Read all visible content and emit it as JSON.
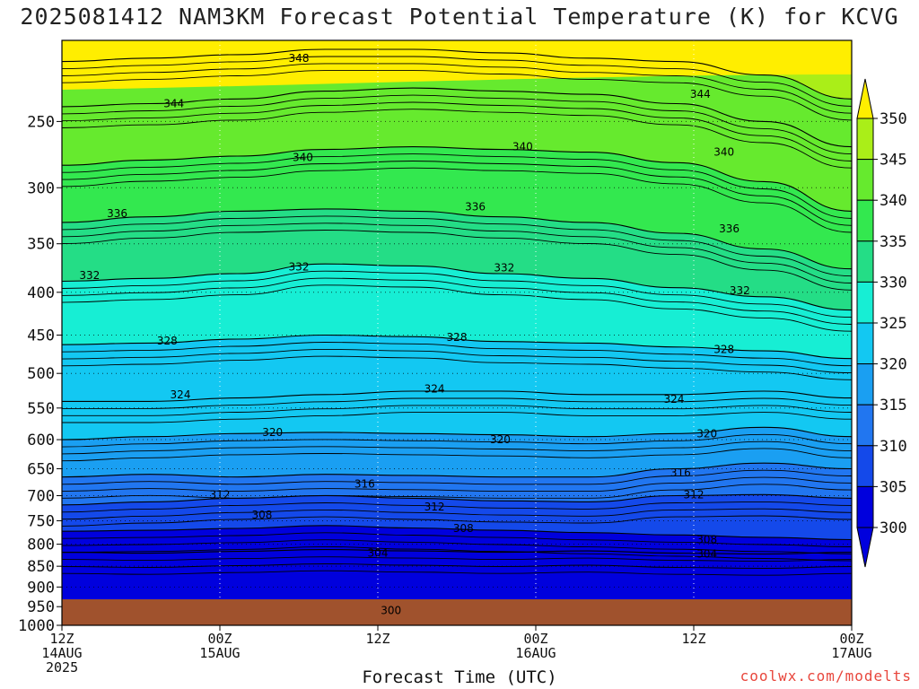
{
  "title": "2025081412 NAM3KM Forecast Potential Temperature (K) for KCVG",
  "watermark": "coolwx.com/modelts",
  "chart_data": {
    "type": "heatmap",
    "title": "2025081412 NAM3KM Forecast Potential Temperature (K) for KCVG",
    "xlabel": "Forecast Time (UTC)",
    "ylabel": "",
    "x_range_hours": [
      0,
      60
    ],
    "x_ticks": [
      {
        "hour": 0,
        "lines": [
          "12Z",
          "14AUG",
          "2025"
        ]
      },
      {
        "hour": 12,
        "lines": [
          "00Z",
          "15AUG"
        ]
      },
      {
        "hour": 24,
        "lines": [
          "12Z"
        ]
      },
      {
        "hour": 36,
        "lines": [
          "00Z",
          "16AUG"
        ]
      },
      {
        "hour": 48,
        "lines": [
          "12Z"
        ]
      },
      {
        "hour": 60,
        "lines": [
          "00Z",
          "17AUG"
        ]
      }
    ],
    "y_ticks": [
      250,
      300,
      350,
      400,
      450,
      500,
      550,
      600,
      650,
      700,
      750,
      800,
      850,
      900,
      950,
      1000
    ],
    "y_range_hPa": [
      200,
      1000
    ],
    "y_scale": "log-pressure",
    "grid": "dotted",
    "colorbar": {
      "ticks": [
        300,
        305,
        310,
        315,
        320,
        325,
        330,
        335,
        340,
        345,
        350
      ],
      "colors": [
        "#0000dd",
        "#1449ea",
        "#2176f0",
        "#1a9ff2",
        "#13c8f2",
        "#17eed4",
        "#24dd86",
        "#33e84f",
        "#66ea2e",
        "#aaee18",
        "#ffee00"
      ],
      "extend": "both"
    },
    "surface_pressure_hPa": 975,
    "contour_interval_K": 4,
    "contours": [
      {
        "level": 304,
        "p": [
          818,
          820,
          816,
          812,
          815,
          818,
          815,
          820,
          822,
          818
        ]
      },
      {
        "level": 308,
        "p": [
          772,
          770,
          766,
          760,
          765,
          770,
          775,
          780,
          785,
          790
        ]
      },
      {
        "level": 312,
        "p": [
          718,
          712,
          705,
          700,
          705,
          710,
          712,
          700,
          698,
          705
        ]
      },
      {
        "level": 316,
        "p": [
          665,
          660,
          665,
          660,
          662,
          665,
          665,
          650,
          640,
          650
        ]
      },
      {
        "level": 320,
        "p": [
          600,
          595,
          590,
          588,
          590,
          592,
          595,
          590,
          580,
          595
        ]
      },
      {
        "level": 324,
        "p": [
          540,
          540,
          535,
          530,
          525,
          525,
          530,
          530,
          525,
          535
        ]
      },
      {
        "level": 328,
        "p": [
          462,
          460,
          455,
          450,
          452,
          458,
          460,
          465,
          470,
          480
        ]
      },
      {
        "level": 332,
        "p": [
          388,
          385,
          380,
          370,
          372,
          380,
          385,
          395,
          405,
          420
        ]
      },
      {
        "level": 336,
        "p": [
          330,
          325,
          320,
          318,
          320,
          325,
          330,
          340,
          355,
          375
        ]
      },
      {
        "level": 340,
        "p": [
          282,
          278,
          275,
          270,
          268,
          270,
          272,
          280,
          295,
          320
        ]
      },
      {
        "level": 344,
        "p": [
          240,
          238,
          235,
          230,
          228,
          230,
          232,
          238,
          250,
          268
        ]
      },
      {
        "level": 348,
        "p": [
          212,
          210,
          208,
          205,
          205,
          207,
          210,
          212,
          220,
          235
        ]
      }
    ],
    "contour_labels": [
      {
        "text": "348",
        "hour": 18.0,
        "p": 210
      },
      {
        "text": "344",
        "hour": 8.5,
        "p": 238
      },
      {
        "text": "344",
        "hour": 48.5,
        "p": 232
      },
      {
        "text": "340",
        "hour": 18.3,
        "p": 276
      },
      {
        "text": "340",
        "hour": 35.0,
        "p": 268
      },
      {
        "text": "340",
        "hour": 50.3,
        "p": 272
      },
      {
        "text": "336",
        "hour": 4.2,
        "p": 322
      },
      {
        "text": "336",
        "hour": 31.4,
        "p": 316
      },
      {
        "text": "336",
        "hour": 50.7,
        "p": 336
      },
      {
        "text": "332",
        "hour": 2.1,
        "p": 382
      },
      {
        "text": "332",
        "hour": 18.0,
        "p": 373
      },
      {
        "text": "332",
        "hour": 33.6,
        "p": 374
      },
      {
        "text": "332",
        "hour": 51.5,
        "p": 398
      },
      {
        "text": "328",
        "hour": 8.0,
        "p": 457
      },
      {
        "text": "328",
        "hour": 30.0,
        "p": 453
      },
      {
        "text": "328",
        "hour": 50.3,
        "p": 468
      },
      {
        "text": "324",
        "hour": 9.0,
        "p": 530
      },
      {
        "text": "324",
        "hour": 28.3,
        "p": 522
      },
      {
        "text": "324",
        "hour": 46.5,
        "p": 537
      },
      {
        "text": "320",
        "hour": 16.0,
        "p": 588
      },
      {
        "text": "320",
        "hour": 33.3,
        "p": 600
      },
      {
        "text": "320",
        "hour": 49.0,
        "p": 590
      },
      {
        "text": "316",
        "hour": 23.0,
        "p": 678
      },
      {
        "text": "316",
        "hour": 47.0,
        "p": 657
      },
      {
        "text": "312",
        "hour": 12.0,
        "p": 698
      },
      {
        "text": "312",
        "hour": 28.3,
        "p": 722
      },
      {
        "text": "312",
        "hour": 48.0,
        "p": 698
      },
      {
        "text": "308",
        "hour": 15.2,
        "p": 738
      },
      {
        "text": "308",
        "hour": 30.5,
        "p": 766
      },
      {
        "text": "308",
        "hour": 49.0,
        "p": 790
      },
      {
        "text": "304",
        "hour": 24.0,
        "p": 820
      },
      {
        "text": "304",
        "hour": 49.0,
        "p": 822
      },
      {
        "text": "300",
        "hour": 25.0,
        "p": 960
      }
    ]
  }
}
